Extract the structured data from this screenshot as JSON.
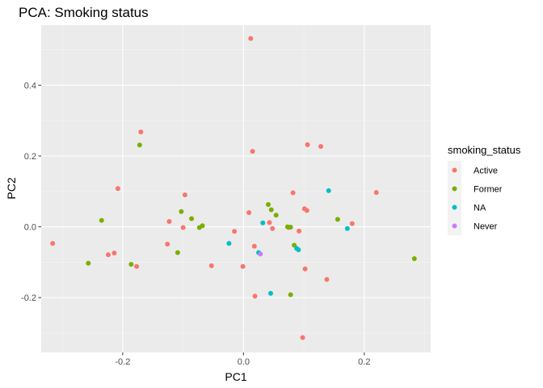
{
  "chart_data": {
    "type": "scatter",
    "title": "PCA: Smoking status",
    "xlabel": "PC1",
    "ylabel": "PC2",
    "xlim": [
      -0.335,
      0.31
    ],
    "ylim": [
      -0.355,
      0.57
    ],
    "x_ticks": [
      -0.2,
      0.0,
      0.2
    ],
    "x_tick_labels": [
      "-0.2",
      "0.0",
      "0.2"
    ],
    "y_ticks": [
      -0.2,
      0.0,
      0.2,
      0.4
    ],
    "y_tick_labels": [
      "-0.2",
      "0.0",
      "0.2",
      "0.4"
    ],
    "grid": true,
    "legend": {
      "title": "smoking_status",
      "placement": "right"
    },
    "series": [
      {
        "name": "Active",
        "color": "#F8766D",
        "points": [
          {
            "x": 0.012,
            "y": 0.532
          },
          {
            "x": -0.17,
            "y": 0.268
          },
          {
            "x": 0.106,
            "y": 0.232
          },
          {
            "x": 0.128,
            "y": 0.227
          },
          {
            "x": 0.015,
            "y": 0.213
          },
          {
            "x": -0.208,
            "y": 0.108
          },
          {
            "x": 0.22,
            "y": 0.097
          },
          {
            "x": 0.082,
            "y": 0.096
          },
          {
            "x": -0.097,
            "y": 0.09
          },
          {
            "x": 0.101,
            "y": 0.051
          },
          {
            "x": 0.105,
            "y": 0.046
          },
          {
            "x": 0.009,
            "y": 0.04
          },
          {
            "x": -0.123,
            "y": 0.015
          },
          {
            "x": 0.043,
            "y": 0.012
          },
          {
            "x": 0.18,
            "y": 0.009
          },
          {
            "x": -0.1,
            "y": -0.002
          },
          {
            "x": 0.075,
            "y": -0.002
          },
          {
            "x": 0.048,
            "y": -0.005
          },
          {
            "x": 0.092,
            "y": -0.012
          },
          {
            "x": -0.015,
            "y": -0.013
          },
          {
            "x": -0.316,
            "y": -0.047
          },
          {
            "x": -0.126,
            "y": -0.049
          },
          {
            "x": 0.018,
            "y": -0.055
          },
          {
            "x": -0.224,
            "y": -0.079
          },
          {
            "x": -0.214,
            "y": -0.074
          },
          {
            "x": -0.177,
            "y": -0.112
          },
          {
            "x": -0.053,
            "y": -0.11
          },
          {
            "x": -0.001,
            "y": -0.112
          },
          {
            "x": 0.102,
            "y": -0.119
          },
          {
            "x": 0.138,
            "y": -0.149
          },
          {
            "x": 0.019,
            "y": -0.196
          },
          {
            "x": 0.098,
            "y": -0.313
          }
        ]
      },
      {
        "name": "Former",
        "color": "#7CAE00",
        "points": [
          {
            "x": -0.172,
            "y": 0.231
          },
          {
            "x": 0.041,
            "y": 0.063
          },
          {
            "x": 0.046,
            "y": 0.048
          },
          {
            "x": -0.103,
            "y": 0.043
          },
          {
            "x": 0.054,
            "y": 0.033
          },
          {
            "x": -0.086,
            "y": 0.023
          },
          {
            "x": 0.156,
            "y": 0.021
          },
          {
            "x": -0.235,
            "y": 0.018
          },
          {
            "x": -0.068,
            "y": 0.003
          },
          {
            "x": -0.073,
            "y": -0.002
          },
          {
            "x": 0.073,
            "y": 0.0
          },
          {
            "x": 0.078,
            "y": -0.001
          },
          {
            "x": 0.084,
            "y": -0.052
          },
          {
            "x": -0.109,
            "y": -0.073
          },
          {
            "x": -0.257,
            "y": -0.103
          },
          {
            "x": -0.186,
            "y": -0.106
          },
          {
            "x": 0.283,
            "y": -0.09
          },
          {
            "x": 0.078,
            "y": -0.192
          }
        ]
      },
      {
        "name": "NA",
        "color": "#00BFC4",
        "points": [
          {
            "x": 0.141,
            "y": 0.102
          },
          {
            "x": 0.032,
            "y": 0.011
          },
          {
            "x": 0.172,
            "y": -0.005
          },
          {
            "x": -0.024,
            "y": -0.047
          },
          {
            "x": 0.088,
            "y": -0.061
          },
          {
            "x": 0.091,
            "y": -0.065
          },
          {
            "x": 0.025,
            "y": -0.073
          },
          {
            "x": 0.045,
            "y": -0.188
          }
        ]
      },
      {
        "name": "Never",
        "color": "#C77CFF",
        "points": [
          {
            "x": 0.028,
            "y": -0.077
          }
        ]
      }
    ]
  }
}
